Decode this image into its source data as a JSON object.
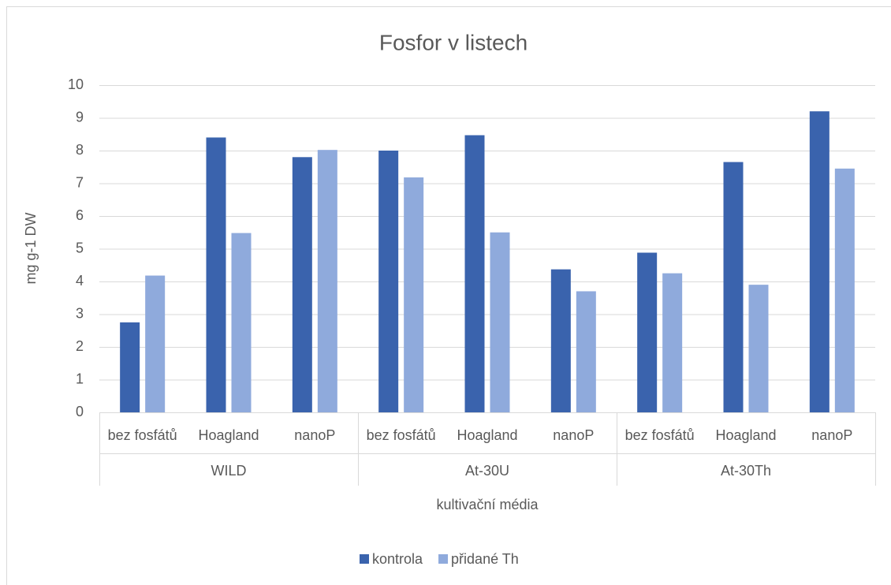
{
  "chart_data": {
    "type": "bar",
    "title": "Fosfor v listech",
    "x_label": "kultivační média",
    "y_label": "mg g-1 DW",
    "categories": [
      "bez fosfátů",
      "Hoagland",
      "nanoP",
      "bez fosfátů",
      "Hoagland",
      "nanoP",
      "bez fosfátů",
      "Hoagland",
      "nanoP"
    ],
    "groups": [
      "WILD",
      "At-30U",
      "At-30Th"
    ],
    "series": [
      {
        "name": "kontrola",
        "color": "#3a63ad",
        "values": [
          2.75,
          8.4,
          7.8,
          8.0,
          8.47,
          4.37,
          4.88,
          7.65,
          9.2
        ]
      },
      {
        "name": "přidané Th",
        "color": "#8faadc",
        "values": [
          4.18,
          5.48,
          8.02,
          7.18,
          5.5,
          3.7,
          4.25,
          3.9,
          7.45
        ]
      }
    ],
    "ylim": [
      0,
      10
    ],
    "yticks": [
      0,
      1,
      2,
      3,
      4,
      5,
      6,
      7,
      8,
      9,
      10
    ],
    "grid": true,
    "legend": "bottom"
  }
}
